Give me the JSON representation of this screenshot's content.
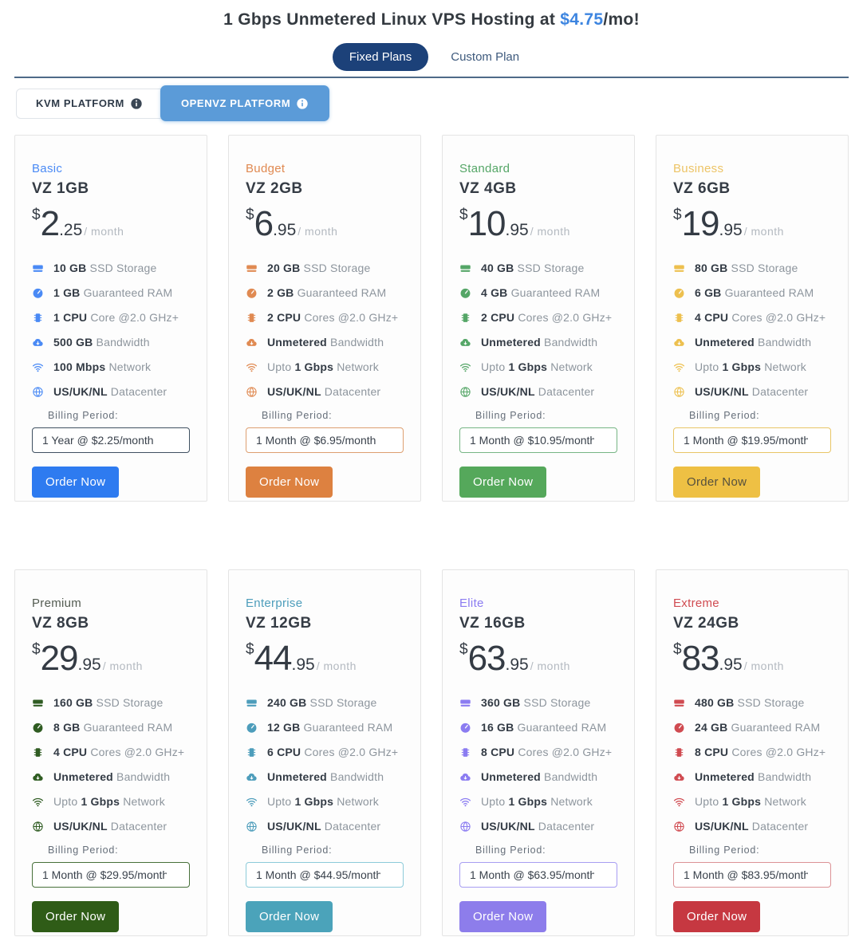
{
  "header": {
    "title_prefix": "1 Gbps Unmetered Linux VPS Hosting at ",
    "title_price": "$4.75",
    "title_suffix": "/mo!",
    "accent_color": "#3d85e0"
  },
  "tabs": [
    {
      "label": "Fixed Plans",
      "active": true
    },
    {
      "label": "Custom Plan",
      "active": false
    }
  ],
  "platform_tabs": [
    {
      "label": "KVM PLATFORM",
      "active": false
    },
    {
      "label": "OPENVZ PLATFORM",
      "active": true,
      "active_color": "#5b9bd8"
    }
  ],
  "billing_label": "Billing Period:",
  "order_label": "Order Now",
  "theme": {
    "tab_pill_color": "#1c4179",
    "divider_color": "#4e6a88",
    "card_background": "#fdfdfd",
    "card_border": "#e4e4e4"
  },
  "plans": [
    {
      "tier": "Basic",
      "name": "VZ 1GB",
      "price_currency": "$",
      "price_whole": "2",
      "price_decimal": ".25",
      "price_suffix": "/ month",
      "color": "#4a8af5",
      "tier_color": "#4a8af5",
      "button_color": "#2e7bf0",
      "button_text_color": "#ffffff",
      "select_border": "#3f5061",
      "billing_option": "1 Year @ $2.25/month",
      "specs": [
        {
          "icon": "storage-icon",
          "prefix": "",
          "bold": "10 GB",
          "text": " SSD Storage"
        },
        {
          "icon": "ram-icon",
          "prefix": "",
          "bold": "1 GB",
          "text": " Guaranteed RAM"
        },
        {
          "icon": "cpu-icon",
          "prefix": "",
          "bold": "1 CPU",
          "text": " Core @2.0 GHz+"
        },
        {
          "icon": "bandwidth-icon",
          "prefix": "",
          "bold": "500 GB",
          "text": " Bandwidth"
        },
        {
          "icon": "network-icon",
          "prefix": "",
          "bold": "100 Mbps",
          "text": " Network"
        },
        {
          "icon": "globe-icon",
          "prefix": "",
          "bold": "US/UK/NL",
          "text": " Datacenter"
        }
      ]
    },
    {
      "tier": "Budget",
      "name": "VZ 2GB",
      "price_currency": "$",
      "price_whole": "6",
      "price_decimal": ".95",
      "price_suffix": "/ month",
      "color": "#e08a52",
      "tier_color": "#e08a52",
      "button_color": "#dd8140",
      "button_text_color": "#ffffff",
      "select_border": "#dd9f70",
      "billing_option": "1 Month @ $6.95/month",
      "specs": [
        {
          "icon": "storage-icon",
          "prefix": "",
          "bold": "20 GB",
          "text": " SSD Storage"
        },
        {
          "icon": "ram-icon",
          "prefix": "",
          "bold": "2 GB",
          "text": " Guaranteed RAM"
        },
        {
          "icon": "cpu-icon",
          "prefix": "",
          "bold": "2 CPU",
          "text": " Cores @2.0 GHz+"
        },
        {
          "icon": "bandwidth-icon",
          "prefix": "",
          "bold": "Unmetered",
          "text": " Bandwidth"
        },
        {
          "icon": "network-icon",
          "prefix": "Upto ",
          "bold": "1 Gbps",
          "text": " Network"
        },
        {
          "icon": "globe-icon",
          "prefix": "",
          "bold": "US/UK/NL",
          "text": " Datacenter"
        }
      ]
    },
    {
      "tier": "Standard",
      "name": "VZ 4GB",
      "price_currency": "$",
      "price_whole": "10",
      "price_decimal": ".95",
      "price_suffix": "/ month",
      "color": "#55a667",
      "tier_color": "#55a667",
      "button_color": "#55a85b",
      "button_text_color": "#ffffff",
      "select_border": "#76b584",
      "billing_option": "1 Month @ $10.95/month",
      "specs": [
        {
          "icon": "storage-icon",
          "prefix": "",
          "bold": "40 GB",
          "text": " SSD Storage"
        },
        {
          "icon": "ram-icon",
          "prefix": "",
          "bold": "4 GB",
          "text": " Guaranteed RAM"
        },
        {
          "icon": "cpu-icon",
          "prefix": "",
          "bold": "2 CPU",
          "text": " Cores @2.0 GHz+"
        },
        {
          "icon": "bandwidth-icon",
          "prefix": "",
          "bold": "Unmetered",
          "text": " Bandwidth"
        },
        {
          "icon": "network-icon",
          "prefix": "Upto ",
          "bold": "1 Gbps",
          "text": " Network"
        },
        {
          "icon": "globe-icon",
          "prefix": "",
          "bold": "US/UK/NL",
          "text": " Datacenter"
        }
      ]
    },
    {
      "tier": "Business",
      "name": "VZ 6GB",
      "price_currency": "$",
      "price_whole": "19",
      "price_decimal": ".95",
      "price_suffix": "/ month",
      "color": "#edc04f",
      "tier_color": "#edc466",
      "button_color": "#eec044",
      "button_text_color": "#56503d",
      "select_border": "#e8c566",
      "billing_option": "1 Month @ $19.95/month",
      "specs": [
        {
          "icon": "storage-icon",
          "prefix": "",
          "bold": "80 GB",
          "text": " SSD Storage"
        },
        {
          "icon": "ram-icon",
          "prefix": "",
          "bold": "6 GB",
          "text": " Guaranteed RAM"
        },
        {
          "icon": "cpu-icon",
          "prefix": "",
          "bold": "4 CPU",
          "text": " Cores @2.0 GHz+"
        },
        {
          "icon": "bandwidth-icon",
          "prefix": "",
          "bold": "Unmetered",
          "text": " Bandwidth"
        },
        {
          "icon": "network-icon",
          "prefix": "Upto ",
          "bold": "1 Gbps",
          "text": " Network"
        },
        {
          "icon": "globe-icon",
          "prefix": "",
          "bold": "US/UK/NL",
          "text": " Datacenter"
        }
      ]
    },
    {
      "tier": "Premium",
      "name": "VZ 8GB",
      "price_currency": "$",
      "price_whole": "29",
      "price_decimal": ".95",
      "price_suffix": "/ month",
      "color": "#2f5c22",
      "tier_color": "#535b51",
      "button_color": "#2f5c17",
      "button_text_color": "#ffffff",
      "select_border": "#47703a",
      "billing_option": "1 Month @ $29.95/month",
      "specs": [
        {
          "icon": "storage-icon",
          "prefix": "",
          "bold": "160 GB",
          "text": " SSD Storage"
        },
        {
          "icon": "ram-icon",
          "prefix": "",
          "bold": "8 GB",
          "text": " Guaranteed RAM"
        },
        {
          "icon": "cpu-icon",
          "prefix": "",
          "bold": "4 CPU",
          "text": " Cores @2.0 GHz+"
        },
        {
          "icon": "bandwidth-icon",
          "prefix": "",
          "bold": "Unmetered",
          "text": " Bandwidth"
        },
        {
          "icon": "network-icon",
          "prefix": "Upto ",
          "bold": "1 Gbps",
          "text": " Network"
        },
        {
          "icon": "globe-icon",
          "prefix": "",
          "bold": "US/UK/NL",
          "text": " Datacenter"
        }
      ]
    },
    {
      "tier": "Enterprise",
      "name": "VZ 12GB",
      "price_currency": "$",
      "price_whole": "44",
      "price_decimal": ".95",
      "price_suffix": "/ month",
      "color": "#4d9dbb",
      "tier_color": "#4d9dbb",
      "button_color": "#4ba3ba",
      "button_text_color": "#ffffff",
      "select_border": "#8ccbd9",
      "billing_option": "1 Month @ $44.95/month",
      "specs": [
        {
          "icon": "storage-icon",
          "prefix": "",
          "bold": "240 GB",
          "text": " SSD Storage"
        },
        {
          "icon": "ram-icon",
          "prefix": "",
          "bold": "12 GB",
          "text": " Guaranteed RAM"
        },
        {
          "icon": "cpu-icon",
          "prefix": "",
          "bold": "6 CPU",
          "text": " Cores @2.0 GHz+"
        },
        {
          "icon": "bandwidth-icon",
          "prefix": "",
          "bold": "Unmetered",
          "text": " Bandwidth"
        },
        {
          "icon": "network-icon",
          "prefix": "Upto ",
          "bold": "1 Gbps",
          "text": " Network"
        },
        {
          "icon": "globe-icon",
          "prefix": "",
          "bold": "US/UK/NL",
          "text": " Datacenter"
        }
      ]
    },
    {
      "tier": "Elite",
      "name": "VZ 16GB",
      "price_currency": "$",
      "price_whole": "63",
      "price_decimal": ".95",
      "price_suffix": "/ month",
      "color": "#8b7cf1",
      "tier_color": "#8b7cf1",
      "button_color": "#8d7deb",
      "button_text_color": "#ffffff",
      "select_border": "#a79df2",
      "billing_option": "1 Month @ $63.95/month",
      "specs": [
        {
          "icon": "storage-icon",
          "prefix": "",
          "bold": "360 GB",
          "text": " SSD Storage"
        },
        {
          "icon": "ram-icon",
          "prefix": "",
          "bold": "16 GB",
          "text": " Guaranteed RAM"
        },
        {
          "icon": "cpu-icon",
          "prefix": "",
          "bold": "8 CPU",
          "text": " Cores @2.0 GHz+"
        },
        {
          "icon": "bandwidth-icon",
          "prefix": "",
          "bold": "Unmetered",
          "text": " Bandwidth"
        },
        {
          "icon": "network-icon",
          "prefix": "Upto ",
          "bold": "1 Gbps",
          "text": " Network"
        },
        {
          "icon": "globe-icon",
          "prefix": "",
          "bold": "US/UK/NL",
          "text": " Datacenter"
        }
      ]
    },
    {
      "tier": "Extreme",
      "name": "VZ 24GB",
      "price_currency": "$",
      "price_whole": "83",
      "price_decimal": ".95",
      "price_suffix": "/ month",
      "color": "#d04b51",
      "tier_color": "#d04b51",
      "button_color": "#c63841",
      "button_text_color": "#ffffff",
      "select_border": "#dc9296",
      "billing_option": "1 Month @ $83.95/month",
      "specs": [
        {
          "icon": "storage-icon",
          "prefix": "",
          "bold": "480 GB",
          "text": " SSD Storage"
        },
        {
          "icon": "ram-icon",
          "prefix": "",
          "bold": "24 GB",
          "text": " Guaranteed RAM"
        },
        {
          "icon": "cpu-icon",
          "prefix": "",
          "bold": "8 CPU",
          "text": " Cores @2.0 GHz+"
        },
        {
          "icon": "bandwidth-icon",
          "prefix": "",
          "bold": "Unmetered",
          "text": " Bandwidth"
        },
        {
          "icon": "network-icon",
          "prefix": "Upto ",
          "bold": "1 Gbps",
          "text": " Network"
        },
        {
          "icon": "globe-icon",
          "prefix": "",
          "bold": "US/UK/NL",
          "text": " Datacenter"
        }
      ]
    }
  ]
}
